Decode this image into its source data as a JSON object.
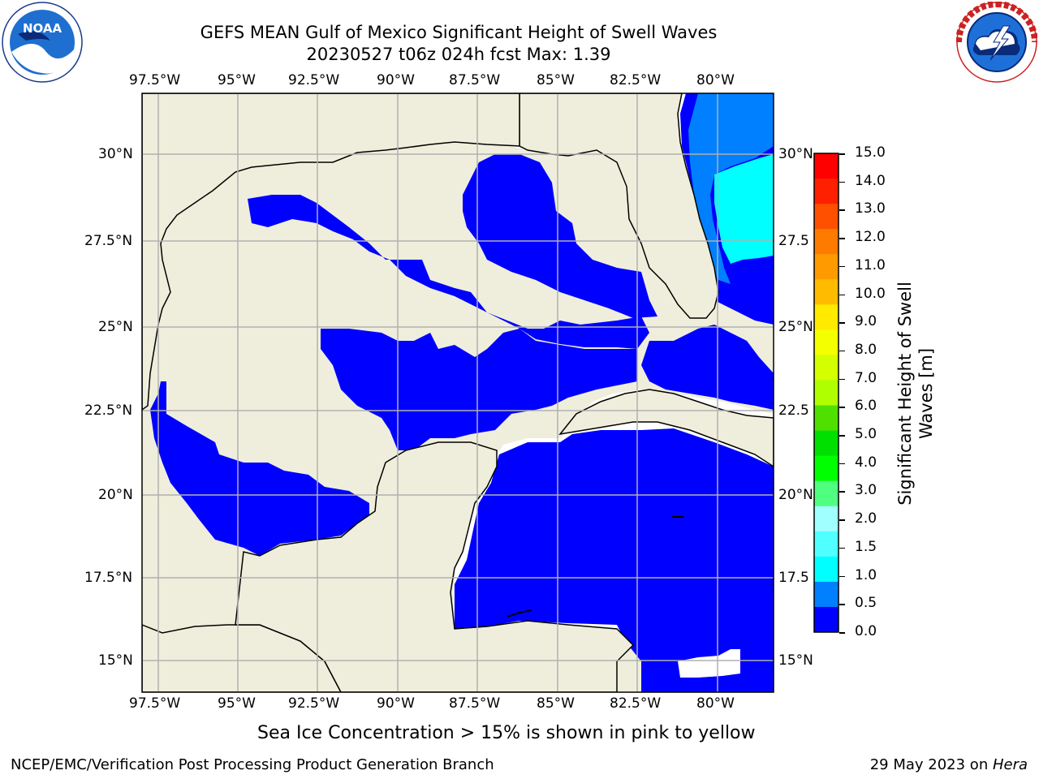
{
  "header": {
    "title_line1": "GEFS MEAN Gulf of Mexico Significant Height of Swell Waves",
    "title_line2": "20230527 t06z 024h fcst   Max: 1.39"
  },
  "logos": {
    "left": {
      "text": "NOAA",
      "ring_text": "NATIONAL OCEANIC AND ATMOSPHERIC ADMINISTRATION · U.S. DEPARTMENT OF COMMERCE"
    },
    "right": {
      "ring_text": "NATIONAL WEATHER SERVICE"
    }
  },
  "map": {
    "lon_labels": [
      "97.5°W",
      "95°W",
      "92.5°W",
      "90°W",
      "87.5°W",
      "85°W",
      "82.5°W",
      "80°W"
    ],
    "lat_labels_left": [
      "30°N",
      "27.5°N",
      "25°N",
      "22.5°N",
      "20°N",
      "17.5°N",
      "15°N"
    ],
    "lat_labels_right": [
      "30°N",
      "27.5",
      "25°N",
      "22.5",
      "20°N",
      "17.5",
      "15°N"
    ],
    "colors": {
      "land": "#efeedc",
      "white_water": "#ffffff",
      "level_0": "#0000ff",
      "level_05": "#0080ff",
      "level_10": "#00ffff",
      "grid": "#b0b0b0",
      "coast": "#000000"
    }
  },
  "colorbar": {
    "label": "Significant Height of Swell Waves [m]",
    "label_line1": "Significant Height of Swell",
    "label_line2": "Waves [m]",
    "ticks": [
      "15.0",
      "14.0",
      "13.0",
      "12.0",
      "11.0",
      "10.0",
      "9.0",
      "8.0",
      "7.0",
      "6.0",
      "5.0",
      "4.0",
      "3.0",
      "2.0",
      "1.5",
      "1.0",
      "0.5",
      "0.0"
    ],
    "colors_top_to_bottom": [
      "#ff0000",
      "#ff2000",
      "#ff5000",
      "#ff7b00",
      "#ff9a00",
      "#ffbb00",
      "#ffea00",
      "#f4ff00",
      "#d4ff00",
      "#b0ff00",
      "#50e000",
      "#00e000",
      "#00ff00",
      "#50ff80",
      "#a0ffff",
      "#50ffff",
      "#00ffff",
      "#0080ff",
      "#0000ff"
    ]
  },
  "caption": "Sea Ice Concentration > 15% is shown in pink to yellow",
  "footer": {
    "left": "NCEP/EMC/Verification Post Processing Product Generation Branch",
    "right_date": "29 May 2023 on ",
    "right_machine": "Hera"
  }
}
